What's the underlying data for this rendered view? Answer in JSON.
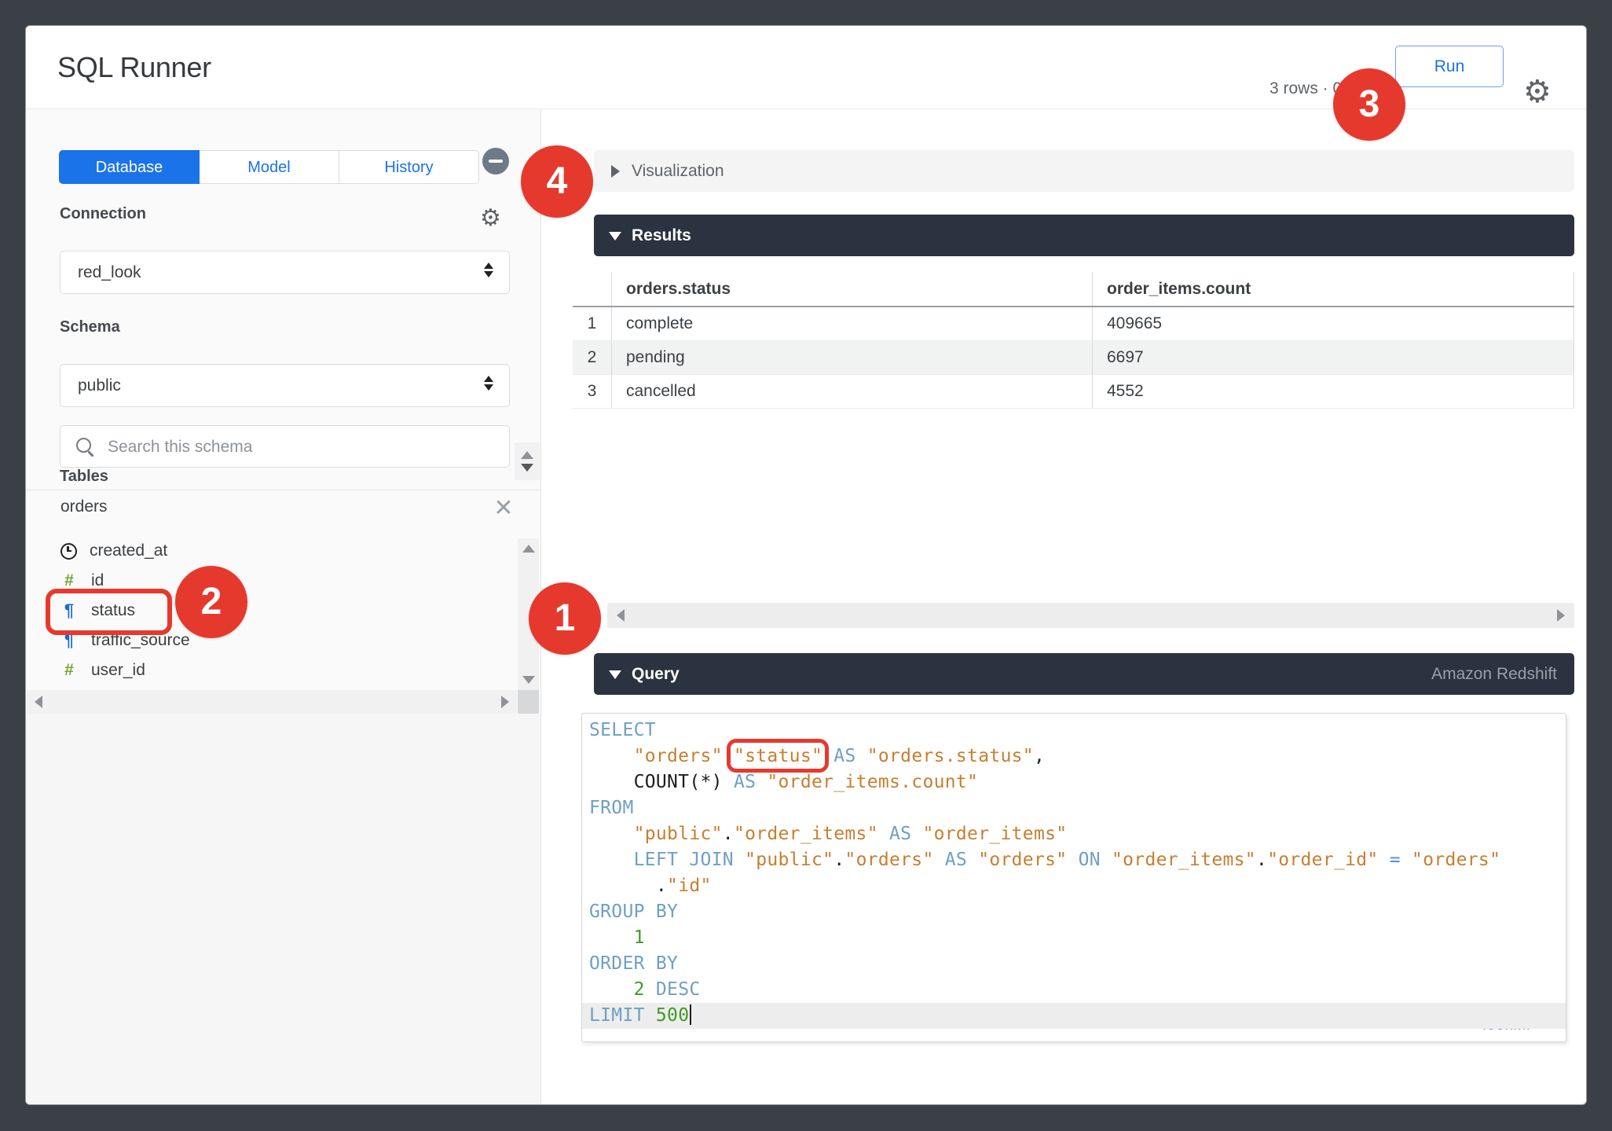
{
  "header": {
    "title": "SQL Runner",
    "rows_info": "3 rows · 0",
    "run_label": "Run"
  },
  "sidebar": {
    "tabs": [
      {
        "label": "Database",
        "active": true
      },
      {
        "label": "Model",
        "active": false
      },
      {
        "label": "History",
        "active": false
      }
    ],
    "connection": {
      "label": "Connection",
      "value": "red_look"
    },
    "schema": {
      "label": "Schema",
      "value": "public"
    },
    "search": {
      "placeholder": "Search this schema"
    },
    "tables_label": "Tables",
    "table": {
      "name": "orders",
      "columns": [
        {
          "name": "created_at",
          "type": "time"
        },
        {
          "name": "id",
          "type": "number"
        },
        {
          "name": "status",
          "type": "text",
          "annotated": true
        },
        {
          "name": "traffic_source",
          "type": "text"
        },
        {
          "name": "user_id",
          "type": "number"
        }
      ]
    }
  },
  "main": {
    "visualization": {
      "label": "Visualization"
    },
    "results": {
      "label": "Results",
      "columns": [
        "orders.status",
        "order_items.count"
      ],
      "rows": [
        [
          "1",
          "complete",
          "409665"
        ],
        [
          "2",
          "pending",
          "6697"
        ],
        [
          "3",
          "cancelled",
          "4552"
        ]
      ]
    },
    "query": {
      "label": "Query",
      "dialect": "Amazon Redshift",
      "lines": [
        {
          "tokens": [
            {
              "t": "k",
              "v": "SELECT"
            }
          ]
        },
        {
          "tokens": [
            {
              "t": "p",
              "v": "    "
            },
            {
              "t": "s",
              "v": "\"orders\""
            },
            {
              "t": "p",
              "v": "."
            },
            {
              "t": "s",
              "v": "\"status\"",
              "box": true
            },
            {
              "t": "p",
              "v": " "
            },
            {
              "t": "k",
              "v": "AS"
            },
            {
              "t": "p",
              "v": " "
            },
            {
              "t": "s",
              "v": "\"orders.status\""
            },
            {
              "t": "p",
              "v": ","
            }
          ]
        },
        {
          "tokens": [
            {
              "t": "p",
              "v": "    "
            },
            {
              "t": "p",
              "v": "COUNT(*)"
            },
            {
              "t": "p",
              "v": " "
            },
            {
              "t": "k",
              "v": "AS"
            },
            {
              "t": "p",
              "v": " "
            },
            {
              "t": "s",
              "v": "\"order_items.count\""
            }
          ]
        },
        {
          "tokens": [
            {
              "t": "k",
              "v": "FROM"
            }
          ]
        },
        {
          "tokens": [
            {
              "t": "p",
              "v": "    "
            },
            {
              "t": "s",
              "v": "\"public\""
            },
            {
              "t": "p",
              "v": "."
            },
            {
              "t": "s",
              "v": "\"order_items\""
            },
            {
              "t": "p",
              "v": " "
            },
            {
              "t": "k",
              "v": "AS"
            },
            {
              "t": "p",
              "v": " "
            },
            {
              "t": "s",
              "v": "\"order_items\""
            }
          ]
        },
        {
          "tokens": [
            {
              "t": "p",
              "v": "    "
            },
            {
              "t": "k",
              "v": "LEFT JOIN"
            },
            {
              "t": "p",
              "v": " "
            },
            {
              "t": "s",
              "v": "\"public\""
            },
            {
              "t": "p",
              "v": "."
            },
            {
              "t": "s",
              "v": "\"orders\""
            },
            {
              "t": "p",
              "v": " "
            },
            {
              "t": "k",
              "v": "AS"
            },
            {
              "t": "p",
              "v": " "
            },
            {
              "t": "s",
              "v": "\"orders\""
            },
            {
              "t": "p",
              "v": " "
            },
            {
              "t": "k",
              "v": "ON"
            },
            {
              "t": "p",
              "v": " "
            },
            {
              "t": "s",
              "v": "\"order_items\""
            },
            {
              "t": "p",
              "v": "."
            },
            {
              "t": "s",
              "v": "\"order_id\""
            },
            {
              "t": "p",
              "v": " "
            },
            {
              "t": "o",
              "v": "="
            },
            {
              "t": "p",
              "v": " "
            },
            {
              "t": "s",
              "v": "\"orders\""
            }
          ]
        },
        {
          "tokens": [
            {
              "t": "p",
              "v": "      "
            },
            {
              "t": "p",
              "v": "."
            },
            {
              "t": "s",
              "v": "\"id\""
            }
          ]
        },
        {
          "tokens": [
            {
              "t": "k",
              "v": "GROUP BY"
            }
          ]
        },
        {
          "tokens": [
            {
              "t": "p",
              "v": "    "
            },
            {
              "t": "n",
              "v": "1"
            }
          ]
        },
        {
          "tokens": [
            {
              "t": "k",
              "v": "ORDER BY"
            }
          ]
        },
        {
          "tokens": [
            {
              "t": "p",
              "v": "    "
            },
            {
              "t": "n",
              "v": "2"
            },
            {
              "t": "p",
              "v": " "
            },
            {
              "t": "k",
              "v": "DESC"
            }
          ]
        },
        {
          "tokens": [
            {
              "t": "k",
              "v": "LIMIT"
            },
            {
              "t": "p",
              "v": " "
            },
            {
              "t": "n",
              "v": "500"
            }
          ],
          "highlight": true,
          "cursor": true
        }
      ]
    }
  },
  "annotations": {
    "badges": [
      "1",
      "2",
      "3",
      "4"
    ]
  },
  "watermark": {
    "text": "lookml"
  },
  "colors": {
    "accent_blue": "#1a73e8",
    "annotation_red": "#e6392e",
    "panel_dark": "#2b3240",
    "sql_keyword": "#6ea0c3",
    "sql_string": "#c87e2f",
    "sql_number": "#3f9a28",
    "sql_operator": "#4d8ef7"
  }
}
